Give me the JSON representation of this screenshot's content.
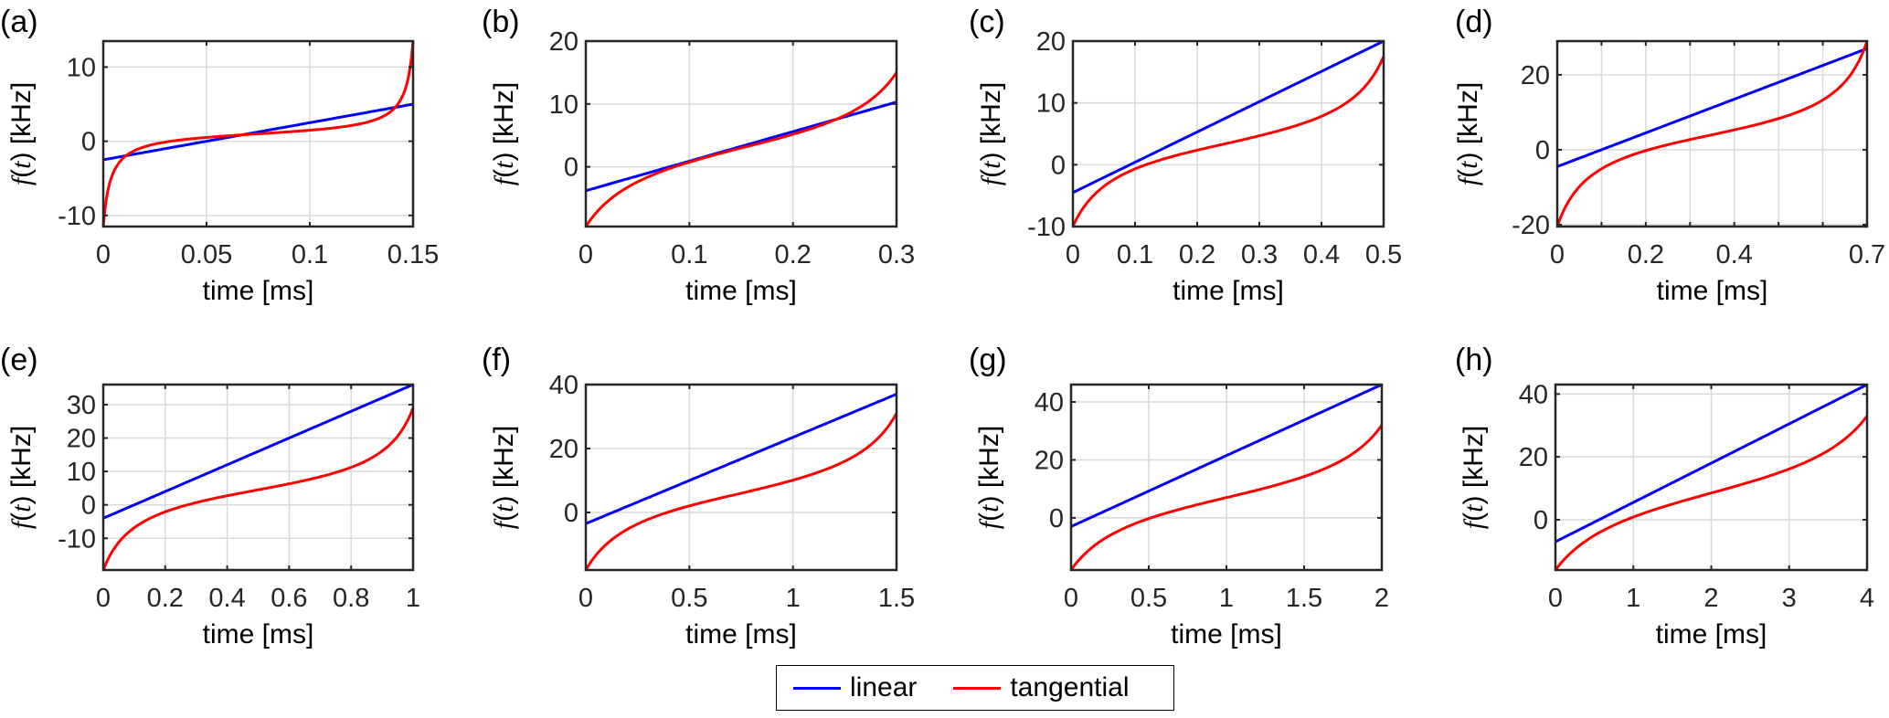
{
  "chart_data": [
    {
      "panel_label": "(a)",
      "type": "line",
      "xlabel": "time [ms]",
      "ylabel": "f(t) [kHz]",
      "xlim": [
        0,
        0.15
      ],
      "ylim": [
        -11.5,
        13.5
      ],
      "xticks": [
        0,
        0.05,
        0.1,
        0.15
      ],
      "xtick_labels": [
        "0",
        "0.05",
        "0.1",
        "0.15"
      ],
      "xgrid": [
        0.05,
        0.1
      ],
      "yticks": [
        -10,
        0,
        10
      ],
      "ytick_labels": [
        "-10",
        "0",
        "10"
      ],
      "grid": true,
      "series": [
        {
          "name": "linear",
          "kind": "linear",
          "start": -2.5,
          "end": 5.0
        },
        {
          "name": "tangential",
          "kind": "tangential",
          "start": -11.5,
          "end": 13.5,
          "mid": 1.0,
          "steepness": 3.0
        }
      ]
    },
    {
      "panel_label": "(b)",
      "type": "line",
      "xlabel": "time [ms]",
      "ylabel": "f(t) [kHz]",
      "xlim": [
        0,
        0.3
      ],
      "ylim": [
        -9.5,
        20
      ],
      "xticks": [
        0,
        0.1,
        0.2,
        0.3
      ],
      "xtick_labels": [
        "0",
        "0.1",
        "0.2",
        "0.3"
      ],
      "xgrid": [
        0.1,
        0.2
      ],
      "yticks": [
        0,
        10,
        20
      ],
      "ytick_labels": [
        "0",
        "10",
        "20"
      ],
      "grid": true,
      "series": [
        {
          "name": "linear",
          "kind": "linear",
          "start": -3.8,
          "end": 10.3
        },
        {
          "name": "tangential",
          "kind": "tangential",
          "start": -9.5,
          "end": 15.0,
          "mid": 3.0,
          "steepness": 2.3
        }
      ]
    },
    {
      "panel_label": "(c)",
      "type": "line",
      "xlabel": "time [ms]",
      "ylabel": "f(t) [kHz]",
      "xlim": [
        0,
        0.5
      ],
      "ylim": [
        -10,
        20
      ],
      "xticks": [
        0,
        0.1,
        0.2,
        0.3,
        0.4,
        0.5
      ],
      "xtick_labels": [
        "0",
        "0.1",
        "0.2",
        "0.3",
        "0.4",
        "0.5"
      ],
      "xgrid": [
        0.1,
        0.2,
        0.3,
        0.4
      ],
      "yticks": [
        -10,
        0,
        10,
        20
      ],
      "ytick_labels": [
        "-10",
        "0",
        "10",
        "20"
      ],
      "grid": true,
      "series": [
        {
          "name": "linear",
          "kind": "linear",
          "start": -4.5,
          "end": 20.0
        },
        {
          "name": "tangential",
          "kind": "tangential",
          "start": -10.0,
          "end": 17.5,
          "mid": 3.5,
          "steepness": 2.5
        }
      ]
    },
    {
      "panel_label": "(d)",
      "type": "line",
      "xlabel": "time [ms]",
      "ylabel": "f(t) [kHz]",
      "xlim": [
        0,
        0.7
      ],
      "ylim": [
        -20.5,
        29
      ],
      "xticks": [
        0,
        0.2,
        0.4,
        0.7
      ],
      "xtick_labels": [
        "0",
        "0.2",
        "0.4",
        "0.7"
      ],
      "xgrid": [
        0.1,
        0.2,
        0.3,
        0.4,
        0.5,
        0.6
      ],
      "yticks": [
        -20,
        0,
        20
      ],
      "ytick_labels": [
        "-20",
        "0",
        "20"
      ],
      "grid": true,
      "series": [
        {
          "name": "linear",
          "kind": "linear",
          "start": -4.5,
          "end": 27.0
        },
        {
          "name": "tangential",
          "kind": "tangential",
          "start": -20.5,
          "end": 29.0,
          "mid": 4.0,
          "steepness": 2.6
        }
      ]
    },
    {
      "panel_label": "(e)",
      "type": "line",
      "xlabel": "time [ms]",
      "ylabel": "f(t) [kHz]",
      "xlim": [
        0,
        1
      ],
      "ylim": [
        -19.5,
        36
      ],
      "xticks": [
        0,
        0.2,
        0.4,
        0.6,
        0.8,
        1
      ],
      "xtick_labels": [
        "0",
        "0.2",
        "0.4",
        "0.6",
        "0.8",
        "1"
      ],
      "xgrid": [
        0.2,
        0.4,
        0.6,
        0.8
      ],
      "yticks": [
        -10,
        0,
        10,
        20,
        30
      ],
      "ytick_labels": [
        "-10",
        "0",
        "10",
        "20",
        "30"
      ],
      "grid": true,
      "series": [
        {
          "name": "linear",
          "kind": "linear",
          "start": -4.0,
          "end": 36.0
        },
        {
          "name": "tangential",
          "kind": "tangential",
          "start": -19.5,
          "end": 29.0,
          "mid": 4.5,
          "steepness": 2.6
        }
      ]
    },
    {
      "panel_label": "(f)",
      "type": "line",
      "xlabel": "time [ms]",
      "ylabel": "f(t) [kHz]",
      "xlim": [
        0,
        1.5
      ],
      "ylim": [
        -18,
        40
      ],
      "xticks": [
        0,
        0.5,
        1,
        1.5
      ],
      "xtick_labels": [
        "0",
        "0.5",
        "1",
        "1.5"
      ],
      "xgrid": [
        0.5,
        1
      ],
      "yticks": [
        0,
        20,
        40
      ],
      "ytick_labels": [
        "0",
        "20",
        "40"
      ],
      "grid": true,
      "series": [
        {
          "name": "linear",
          "kind": "linear",
          "start": -3.5,
          "end": 37.0
        },
        {
          "name": "tangential",
          "kind": "tangential",
          "start": -18.0,
          "end": 31.0,
          "mid": 6.0,
          "steepness": 2.4
        }
      ]
    },
    {
      "panel_label": "(g)",
      "type": "line",
      "xlabel": "time [ms]",
      "ylabel": "f(t) [kHz]",
      "xlim": [
        0,
        2
      ],
      "ylim": [
        -18,
        46
      ],
      "xticks": [
        0,
        0.5,
        1,
        1.5,
        2
      ],
      "xtick_labels": [
        "0",
        "0.5",
        "1",
        "1.5",
        "2"
      ],
      "xgrid": [
        0.5,
        1,
        1.5
      ],
      "yticks": [
        0,
        20,
        40
      ],
      "ytick_labels": [
        "0",
        "20",
        "40"
      ],
      "grid": true,
      "series": [
        {
          "name": "linear",
          "kind": "linear",
          "start": -3.0,
          "end": 46.0
        },
        {
          "name": "tangential",
          "kind": "tangential",
          "start": -18.0,
          "end": 32.0,
          "mid": 7.0,
          "steepness": 2.3
        }
      ]
    },
    {
      "panel_label": "(h)",
      "type": "line",
      "xlabel": "time [ms]",
      "ylabel": "f(t) [kHz]",
      "xlim": [
        0,
        4
      ],
      "ylim": [
        -16,
        43
      ],
      "xticks": [
        0,
        1,
        2,
        3,
        4
      ],
      "xtick_labels": [
        "0",
        "1",
        "2",
        "3",
        "4"
      ],
      "xgrid": [
        1,
        2,
        3
      ],
      "yticks": [
        0,
        20,
        40
      ],
      "ytick_labels": [
        "0",
        "20",
        "40"
      ],
      "grid": true,
      "series": [
        {
          "name": "linear",
          "kind": "linear",
          "start": -7.0,
          "end": 43.0
        },
        {
          "name": "tangential",
          "kind": "tangential",
          "start": -16.0,
          "end": 33.0,
          "mid": 8.5,
          "steepness": 2.2
        }
      ]
    }
  ],
  "legend": {
    "placement": "bottom-center",
    "items": [
      {
        "label": "linear",
        "color": "#0000ff"
      },
      {
        "label": "tangential",
        "color": "#ff0000"
      }
    ]
  },
  "colors": {
    "linear": "#0000ff",
    "tangential": "#ff0000",
    "grid": "#d9d9d9",
    "axes": "#262626"
  }
}
